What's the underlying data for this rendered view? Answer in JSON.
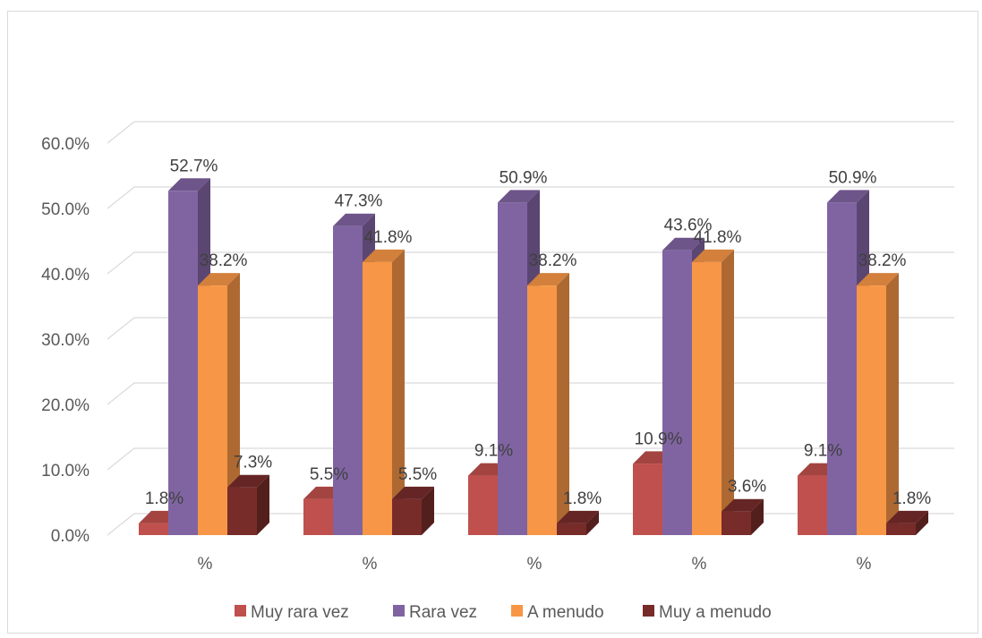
{
  "chart_data": {
    "type": "bar",
    "categories": [
      "%",
      "%",
      "%",
      "%",
      "%"
    ],
    "series": [
      {
        "name": "Muy rara vez",
        "values": [
          1.8,
          5.5,
          9.1,
          10.9,
          9.1
        ],
        "labels": [
          "1.8%",
          "5.5%",
          "9.1%",
          "10.9%",
          "9.1%"
        ]
      },
      {
        "name": "Rara vez",
        "values": [
          52.7,
          47.3,
          50.9,
          43.6,
          50.9
        ],
        "labels": [
          "52.7%",
          "47.3%",
          "50.9%",
          "43.6%",
          "50.9%"
        ]
      },
      {
        "name": "A menudo",
        "values": [
          38.2,
          41.8,
          38.2,
          41.8,
          38.2
        ],
        "labels": [
          "38.2%",
          "41.8%",
          "38.2%",
          "41.8%",
          "38.2%"
        ]
      },
      {
        "name": "Muy a menudo",
        "values": [
          7.3,
          5.5,
          1.8,
          3.6,
          1.8
        ],
        "labels": [
          "7.3%",
          "5.5%",
          "1.8%",
          "3.6%",
          "1.8%"
        ]
      }
    ],
    "ylim": [
      0,
      60
    ],
    "yticks": [
      0,
      10,
      20,
      30,
      40,
      50,
      60
    ],
    "ytick_labels": [
      "0.0%",
      "10.0%",
      "20.0%",
      "30.0%",
      "40.0%",
      "50.0%",
      "60.0%"
    ],
    "grid": true,
    "legend_position": "bottom",
    "style": "3d-clustered-column"
  },
  "colors": {
    "series": [
      "#c0504d",
      "#8064a2",
      "#f79646",
      "#772c2a"
    ],
    "gridline": "#d9d9d9",
    "text": "#595959"
  }
}
